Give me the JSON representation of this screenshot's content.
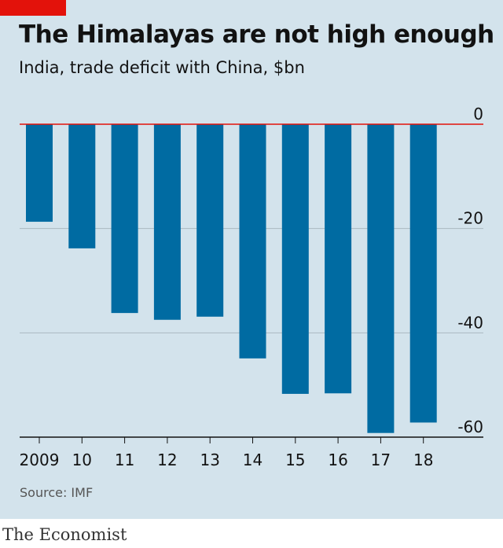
{
  "title": "The Himalayas are not high enough",
  "subtitle": "India, trade deficit with China, $bn",
  "source": "Source: IMF",
  "brand": "The Economist",
  "colors": {
    "background": "#d3e3ec",
    "bar": "#006ba2",
    "zero_line": "#e3120b",
    "grid": "#aab8c1",
    "brand_tag": "#e3120b"
  },
  "chart_data": {
    "type": "bar",
    "categories": [
      "2009",
      "10",
      "11",
      "12",
      "13",
      "14",
      "15",
      "16",
      "17",
      "18"
    ],
    "values": [
      -18.7,
      -23.8,
      -36.2,
      -37.5,
      -36.9,
      -44.9,
      -51.7,
      -51.6,
      -59.2,
      -57.2
    ],
    "ylim": [
      -60,
      0
    ],
    "yticks": [
      0,
      -20,
      -40,
      -60
    ],
    "ytick_labels": [
      "0",
      "-20",
      "-40",
      "-60"
    ],
    "grid": true,
    "y_axis_side": "right"
  }
}
